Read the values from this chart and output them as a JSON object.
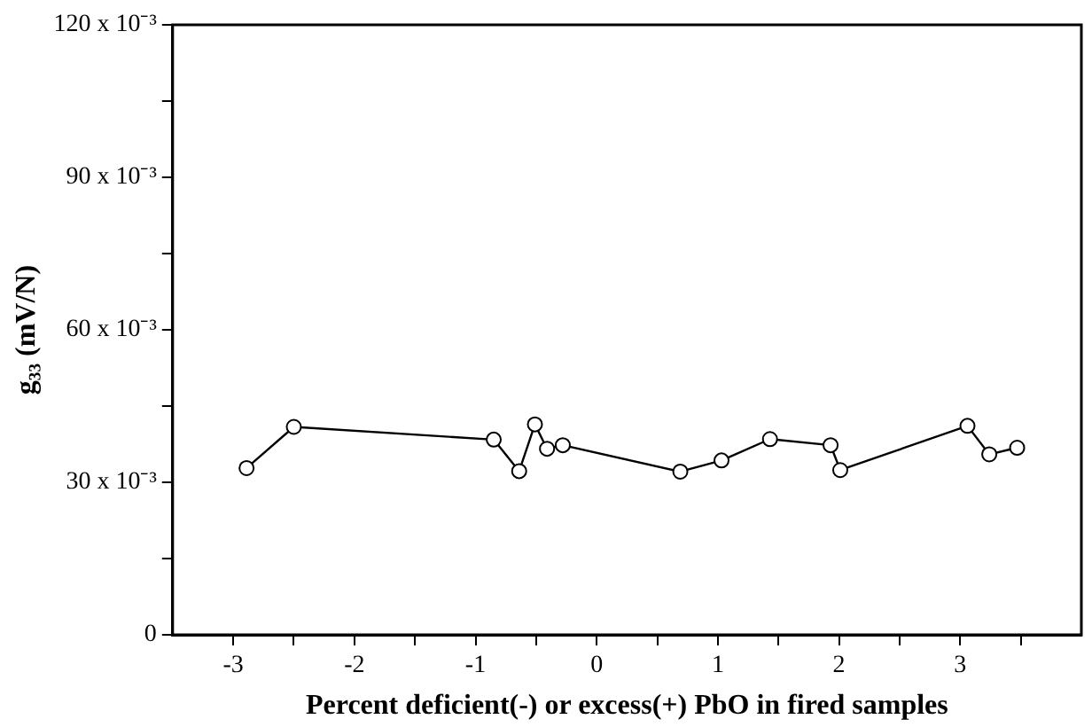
{
  "chart_data": {
    "type": "line",
    "xlabel": "Percent deficient(-) or excess(+) PbO in fired samples",
    "ylabel": "g₃₃ (mV/N)",
    "x": [
      -2.89,
      -2.5,
      -0.85,
      -0.64,
      -0.51,
      -0.41,
      -0.28,
      0.69,
      1.03,
      1.43,
      1.93,
      2.01,
      3.06,
      3.24,
      3.47
    ],
    "series": [
      {
        "color": "#000000",
        "values": [
          0.0328,
          0.0409,
          0.0384,
          0.0322,
          0.0414,
          0.0366,
          0.0373,
          0.0321,
          0.0343,
          0.0385,
          0.0373,
          0.0324,
          0.0411,
          0.0355,
          0.0368
        ]
      }
    ],
    "xlim": [
      -3.5,
      4
    ],
    "xticks": [
      -3,
      {
        "value": -2.5,
        "label": null
      },
      -2,
      {
        "value": -1.5,
        "label": null
      },
      -1,
      {
        "value": -0.5,
        "label": null
      },
      0,
      {
        "value": 0.5,
        "label": null
      },
      1,
      {
        "value": 1.5,
        "label": null
      },
      2,
      {
        "value": 2.5,
        "label": null
      },
      3,
      {
        "value": 3.5,
        "label": null
      }
    ],
    "ylim": [
      0,
      0.12
    ],
    "yticks": [
      {
        "value": 0,
        "label": "0"
      },
      {
        "value": 0.015,
        "label": null
      },
      {
        "value": 0.03,
        "label": "30 x 10⁻³"
      },
      {
        "value": 0.045,
        "label": null
      },
      {
        "value": 0.06,
        "label": "60 x 10⁻³"
      },
      {
        "value": 0.075,
        "label": null
      },
      {
        "value": 0.09,
        "label": "90 x 10⁻³"
      },
      {
        "value": 0.105,
        "label": null
      },
      {
        "value": 0.12,
        "label": "120 x 10⁻³"
      }
    ],
    "grid": false,
    "legend": false,
    "marker": "circle",
    "line_style": "solid"
  }
}
